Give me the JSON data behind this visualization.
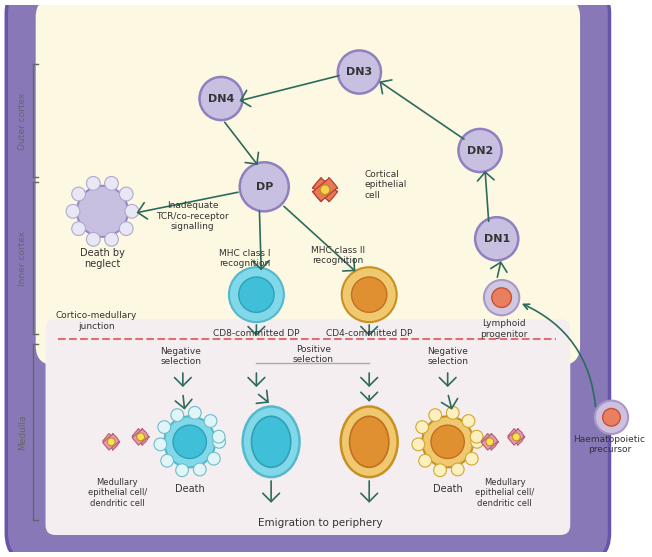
{
  "bg_thymus_fill": "#fdf8e1",
  "bg_medulla_fill": "#f5eef0",
  "bg_purple_border": "#8878b8",
  "bg_purple_dark": "#6655aa",
  "dashed_line_color": "#e07070",
  "arrow_color": "#2d6b5e",
  "text_color": "#333333",
  "side_label_color": "#666666",
  "cell_dn_fill": "#c8c0e0",
  "cell_dn_border": "#9080c0",
  "cell_cd8_outer": "#80d8e8",
  "cell_cd8_inner": "#40c0d8",
  "cell_cd4_outer": "#f0c870",
  "cell_cd4_inner": "#e09030",
  "cell_medullary_color": "#e898b8",
  "cortical_cell_color": "#e87858",
  "label_outer_cortex": "Outer cortex",
  "label_inner_cortex": "Inner cortex",
  "label_medulla": "Medulla",
  "label_cortico": "Cortico-medullary\njunction",
  "lymphoid_label": "Lymphoid\nprogenitor",
  "haem_label": "Haematopoietic\nprecursor",
  "cd8_label": "CD8-committed DP",
  "cd4_label": "CD4-committed DP",
  "cortical_label": "Cortical\nepithelial\ncell",
  "death_neglect_label": "Death by\nneglect",
  "inadequate_label": "Inadequate\nTCR/co-receptor\nsignalling",
  "mhc1_label": "MHC class I\nrecognition",
  "mhc2_label": "MHC class II\nrecognition",
  "neg_sel_left": "Negative\nselection",
  "pos_sel": "Positive\nselection",
  "neg_sel_right": "Negative\nselection",
  "death_left": "Death",
  "death_right": "Death",
  "med_epi_left": "Medullary\nepithelial cell/\ndendritic cell",
  "med_epi_right": "Medullary\nepithelial cell/\ndendritic cell",
  "emigration": "Emigration to periphery"
}
